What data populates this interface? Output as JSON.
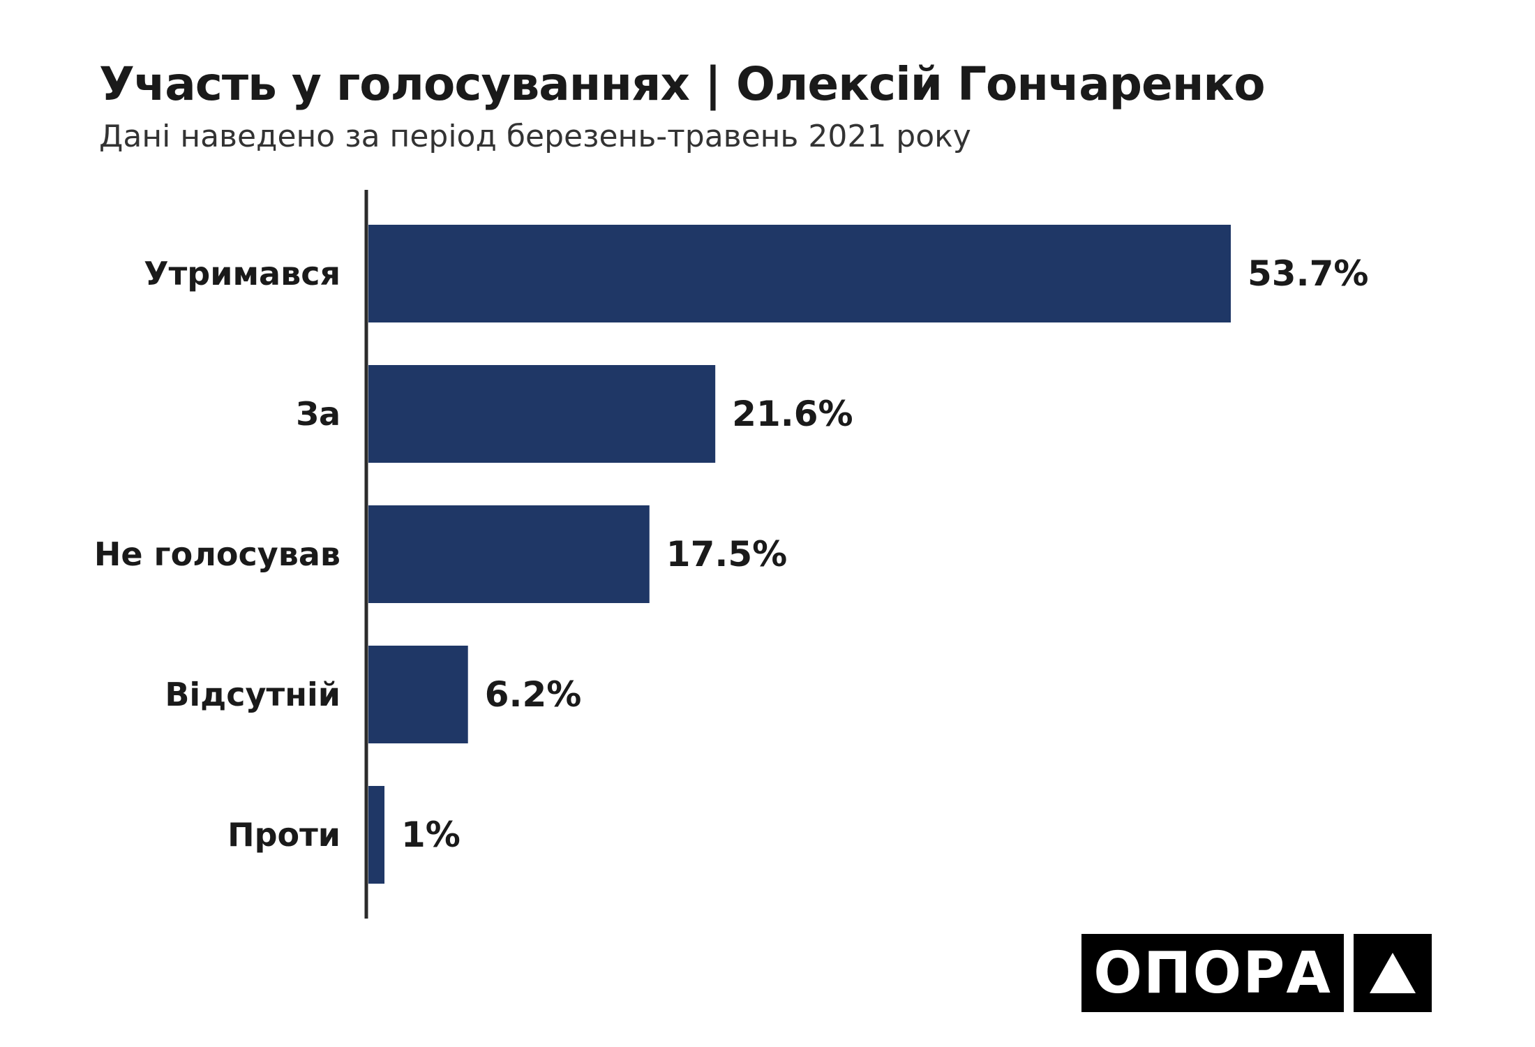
{
  "title": "Участь у голосуваннях | Олексій Гончаренко",
  "subtitle": "Дані наведено за період березень-травень 2021 року",
  "logo": {
    "text": "ОПОРА",
    "icon": "triangle-icon"
  },
  "colors": {
    "bar": "#1f3766",
    "axis": "#2b2b2b",
    "text": "#1a1a1a"
  },
  "chart_data": {
    "type": "bar",
    "orientation": "horizontal",
    "categories": [
      "Утримався",
      "За",
      "Не голосував",
      "Відсутній",
      "Проти"
    ],
    "values": [
      53.7,
      21.6,
      17.5,
      6.2,
      1
    ],
    "value_labels": [
      "53.7%",
      "21.6%",
      "17.5%",
      "6.2%",
      "1%"
    ],
    "title": "Участь у голосуваннях | Олексій Гончаренко",
    "subtitle": "Дані наведено за період березень-травень 2021 року",
    "xlim": [
      0,
      53.7
    ],
    "grid": false,
    "legend": "none"
  }
}
